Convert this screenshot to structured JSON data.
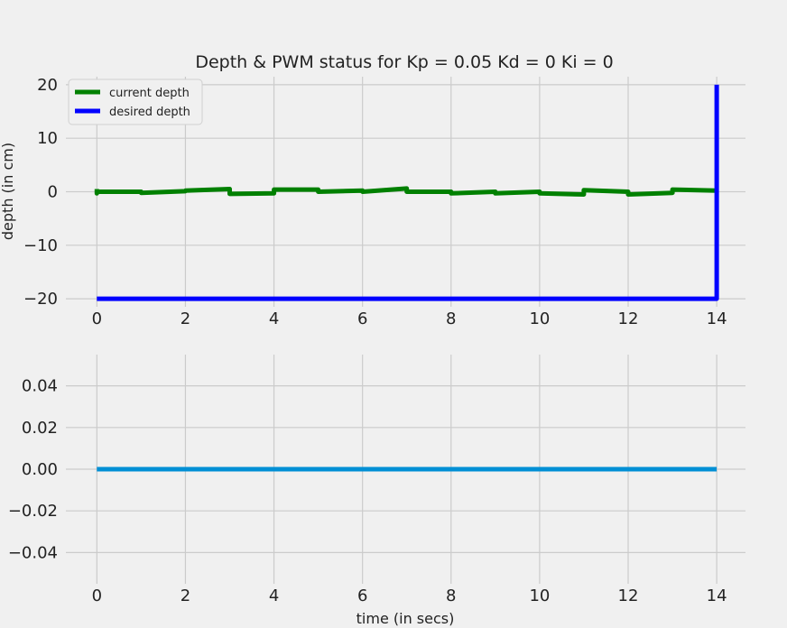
{
  "chart_data": [
    {
      "type": "line",
      "title": "Depth & PWM status for Kp = 0.05 Kd = 0 Ki = 0",
      "xlabel": "",
      "ylabel": "depth (in cm)",
      "xlim": [
        -0.7,
        14.65
      ],
      "ylim": [
        -21.5,
        21.5
      ],
      "xticks": [
        0,
        2,
        4,
        6,
        8,
        10,
        12,
        14
      ],
      "yticks": [
        -20,
        -10,
        0,
        10,
        20
      ],
      "grid": true,
      "legend_position": "upper-left",
      "series": [
        {
          "name": "current depth",
          "color": "#008000",
          "style": "line",
          "x": [
            0,
            0,
            0,
            1,
            1,
            2,
            2,
            3,
            3,
            4,
            4,
            5,
            5,
            6,
            6,
            7,
            7,
            8,
            8,
            9,
            9,
            10,
            10,
            11,
            11,
            12,
            12,
            13,
            13,
            14
          ],
          "y": [
            0.5,
            -0.3,
            0.0,
            0.0,
            -0.2,
            0.1,
            0.2,
            0.5,
            -0.4,
            -0.3,
            0.4,
            0.4,
            0.0,
            0.2,
            0.0,
            0.6,
            0.0,
            0.0,
            -0.3,
            0.0,
            -0.3,
            0.0,
            -0.3,
            -0.5,
            0.3,
            0.0,
            -0.5,
            -0.2,
            0.4,
            0.2
          ]
        },
        {
          "name": "desired depth",
          "color": "#0000ff",
          "style": "line",
          "x": [
            0,
            14,
            14
          ],
          "y": [
            -20,
            -20,
            20
          ]
        }
      ]
    },
    {
      "type": "line",
      "title": "",
      "xlabel": "time (in secs)",
      "ylabel": "",
      "xlim": [
        -0.7,
        14.65
      ],
      "ylim": [
        -0.055,
        0.055
      ],
      "xticks": [
        0,
        2,
        4,
        6,
        8,
        10,
        12,
        14
      ],
      "yticks": [
        -0.04,
        -0.02,
        0.0,
        0.02,
        0.04
      ],
      "ytick_labels": [
        "−0.04",
        "−0.02",
        "0.00",
        "0.02",
        "0.04"
      ],
      "grid": true,
      "series": [
        {
          "color": "#008fd5",
          "style": "line",
          "x": [
            0,
            14
          ],
          "y": [
            0,
            0
          ]
        }
      ]
    }
  ]
}
